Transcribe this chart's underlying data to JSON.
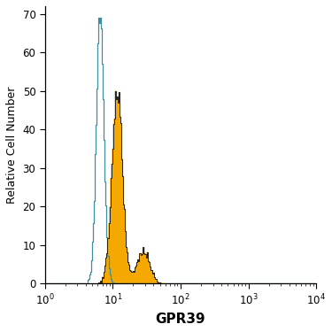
{
  "title": "",
  "xlabel": "GPR39",
  "ylabel": "Relative Cell Number",
  "xlim_log": [
    1,
    10000
  ],
  "ylim": [
    0,
    72
  ],
  "yticks": [
    0,
    10,
    20,
    30,
    40,
    50,
    60,
    70
  ],
  "blue_color": "#3d8fa0",
  "orange_color": "#f5a800",
  "orange_edge_color": "#222222",
  "xlabel_fontsize": 11,
  "ylabel_fontsize": 9,
  "tick_fontsize": 8.5,
  "background_color": "#ffffff",
  "blue_peak_x": 6.5,
  "blue_log_std": 0.13,
  "blue_scale": 69,
  "orange_peak_x": 11.5,
  "orange_log_std": 0.18,
  "orange_scale": 50,
  "n_bins": 300
}
